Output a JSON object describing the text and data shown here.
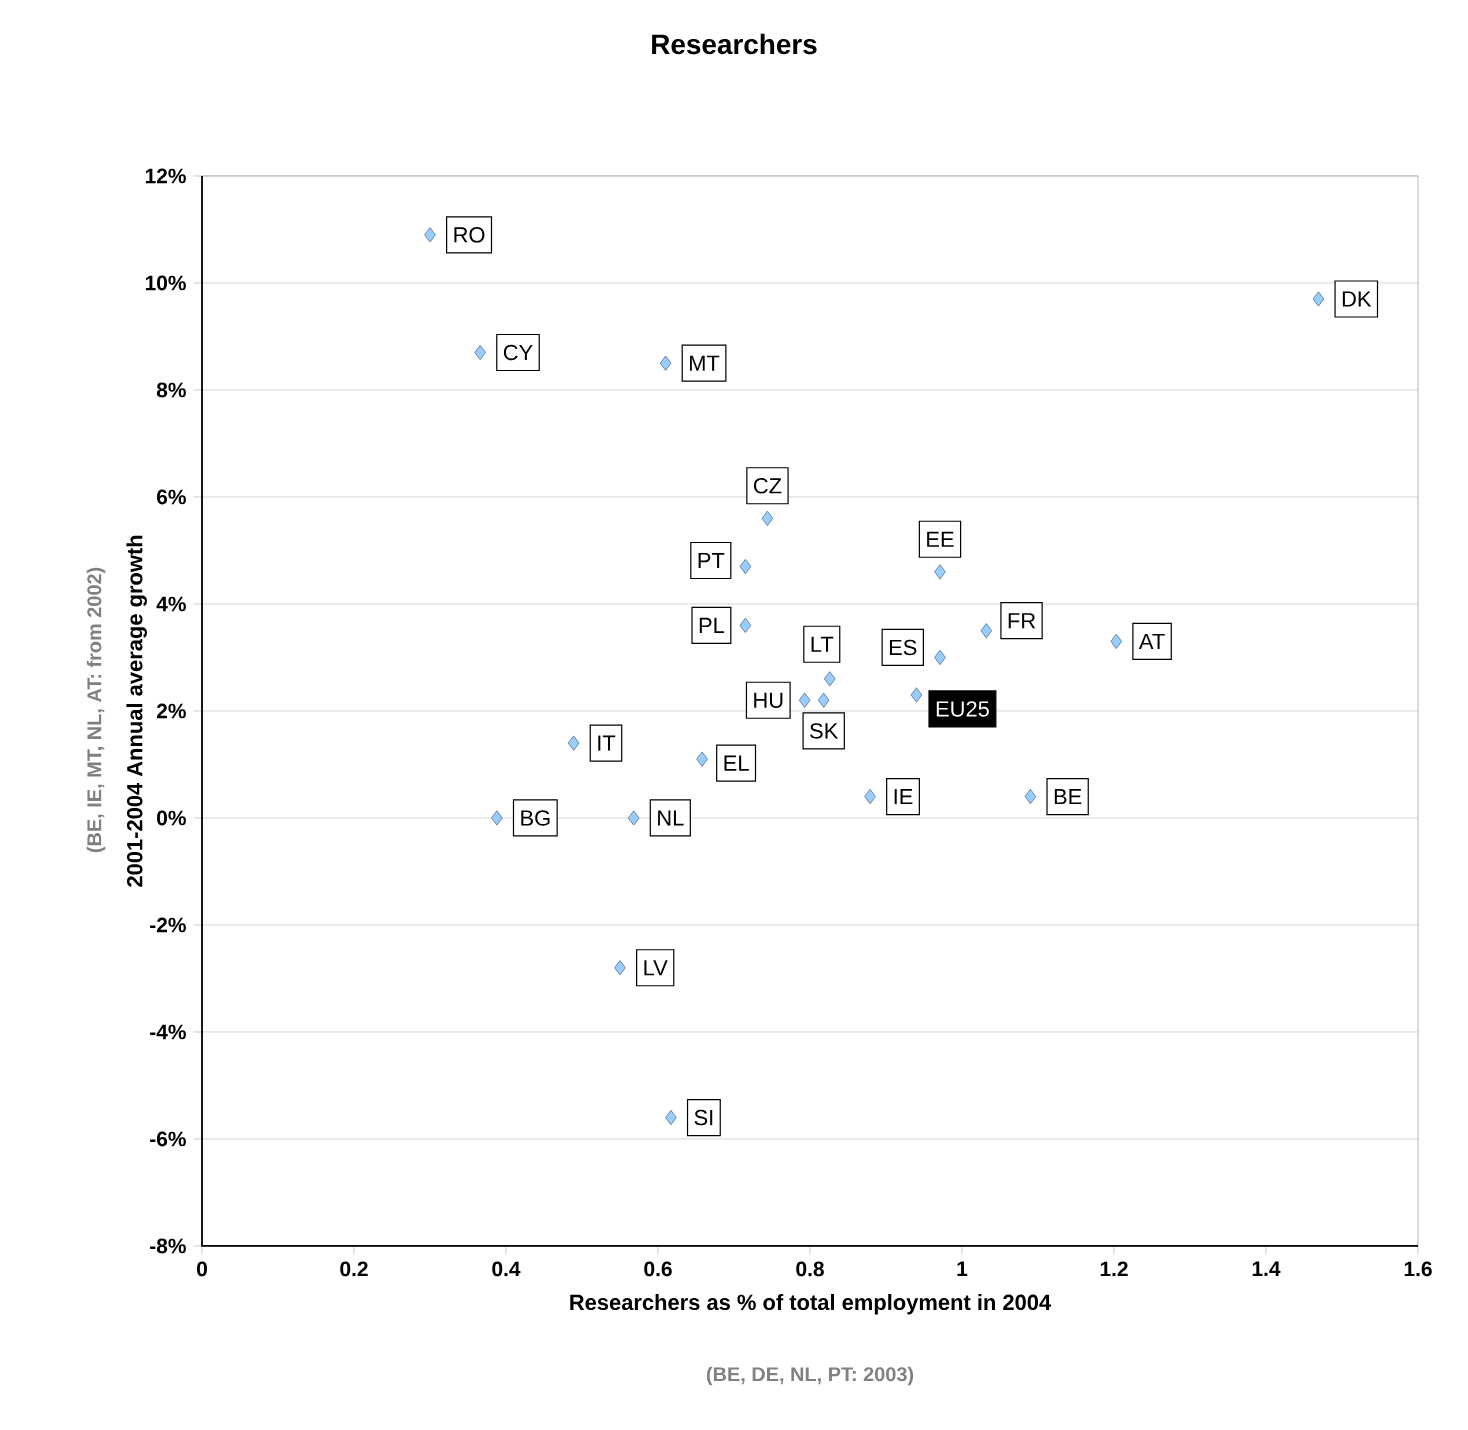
{
  "chart_data": {
    "type": "scatter",
    "title": "Researchers",
    "xlabel": "Researchers as % of total employment in 2004",
    "ylabel": "2001-2004 Annual average growth",
    "x": [
      0.3,
      0.366,
      0.61,
      1.469,
      0.744,
      0.715,
      0.715,
      0.971,
      1.032,
      1.203,
      0.826,
      0.971,
      0.793,
      0.818,
      0.94,
      0.489,
      0.658,
      0.388,
      0.568,
      0.879,
      1.09,
      0.55,
      0.617
    ],
    "values": [
      10.9,
      8.7,
      8.5,
      9.7,
      5.6,
      4.7,
      3.6,
      4.6,
      3.5,
      3.3,
      2.6,
      3.0,
      2.2,
      2.2,
      2.3,
      1.4,
      1.1,
      0.0,
      0.0,
      0.4,
      0.4,
      -2.8,
      -5.6
    ],
    "color": "#99ccff",
    "marker": "diamond",
    "grid": "y",
    "xlim": [
      0,
      1.6
    ],
    "xticks": [
      0,
      0.2,
      0.4,
      0.6,
      0.8,
      1,
      1.2,
      1.4,
      1.6
    ],
    "ylim": [
      -8,
      12
    ],
    "yticks": [
      {
        "value": -8,
        "label": "-8%"
      },
      {
        "value": -6,
        "label": "-6%"
      },
      {
        "value": -4,
        "label": "-4%"
      },
      {
        "value": -2,
        "label": "-2%"
      },
      {
        "value": 0,
        "label": "0%"
      },
      {
        "value": 2,
        "label": "2%"
      },
      {
        "value": 4,
        "label": "4%"
      },
      {
        "value": 6,
        "label": "6%"
      },
      {
        "value": 8,
        "label": "8%"
      },
      {
        "value": 10,
        "label": "10%"
      },
      {
        "value": 12,
        "label": "12%"
      }
    ],
    "annotations": [
      {
        "text": "RO",
        "x": 0.3,
        "y": 10.9
      },
      {
        "text": "CY",
        "x": 0.366,
        "y": 8.7
      },
      {
        "text": "MT",
        "x": 0.61,
        "y": 8.5
      },
      {
        "text": "DK",
        "x": 1.469,
        "y": 9.7
      },
      {
        "text": "CZ",
        "x": 0.744,
        "y": 5.6
      },
      {
        "text": "PT",
        "x": 0.715,
        "y": 4.7
      },
      {
        "text": "PL",
        "x": 0.715,
        "y": 3.6
      },
      {
        "text": "EE",
        "x": 0.971,
        "y": 4.6
      },
      {
        "text": "FR",
        "x": 1.032,
        "y": 3.5
      },
      {
        "text": "AT",
        "x": 1.203,
        "y": 3.3
      },
      {
        "text": "LT",
        "x": 0.826,
        "y": 2.6
      },
      {
        "text": "ES",
        "x": 0.971,
        "y": 3.0
      },
      {
        "text": "HU",
        "x": 0.793,
        "y": 2.2
      },
      {
        "text": "SK",
        "x": 0.818,
        "y": 2.2
      },
      {
        "text": "EU25",
        "x": 0.94,
        "y": 2.3
      },
      {
        "text": "IT",
        "x": 0.489,
        "y": 1.4
      },
      {
        "text": "EL",
        "x": 0.658,
        "y": 1.1
      },
      {
        "text": "BG",
        "x": 0.388,
        "y": 0.0
      },
      {
        "text": "NL",
        "x": 0.568,
        "y": 0.0
      },
      {
        "text": "IE",
        "x": 0.879,
        "y": 0.4
      },
      {
        "text": "BE",
        "x": 1.09,
        "y": 0.4
      },
      {
        "text": "LV",
        "x": 0.55,
        "y": -2.8
      },
      {
        "text": "SI",
        "x": 0.617,
        "y": -5.6
      },
      "(BE, DE, NL, PT: 2003)",
      "(BE, IE, MT, NL, AT: from 2002)"
    ]
  }
}
